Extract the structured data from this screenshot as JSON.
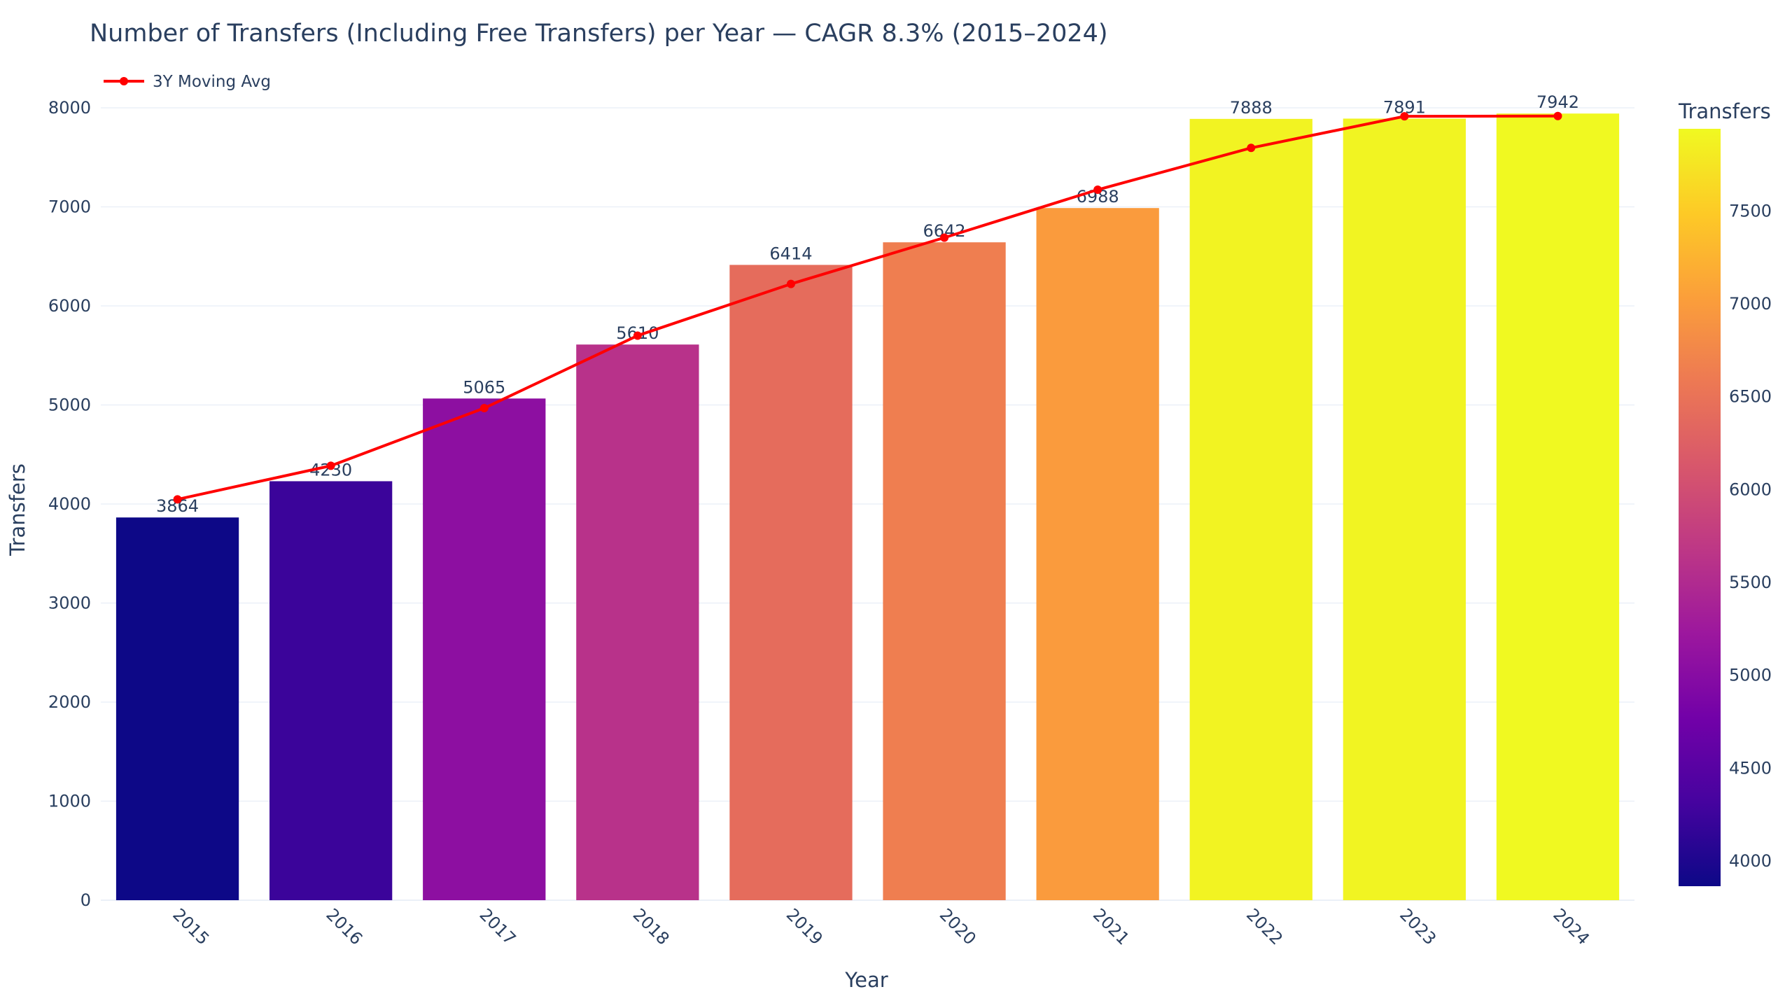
{
  "chart_data": {
    "type": "bar",
    "title": "Number of Transfers (Including Free Transfers) per Year — CAGR 8.3% (2015–2024)",
    "xlabel": "Year",
    "ylabel": "Transfers",
    "categories": [
      "2015",
      "2016",
      "2017",
      "2018",
      "2019",
      "2020",
      "2021",
      "2022",
      "2023",
      "2024"
    ],
    "series": [
      {
        "type": "bar",
        "values": [
          3864,
          4230,
          5065,
          5610,
          6414,
          6642,
          6988,
          7888,
          7891,
          7942
        ],
        "data_labels": [
          "3864",
          "4230",
          "5065",
          "5610",
          "6414",
          "6642",
          "6988",
          "7888",
          "7891",
          "7942"
        ],
        "colorscale": "Plasma"
      },
      {
        "name": "3Y Moving Avg",
        "type": "line",
        "color": "#ff0000",
        "values": [
          4047,
          4386,
          4968,
          5700,
          6222,
          6689,
          7173,
          7595,
          7914,
          7917
        ]
      }
    ],
    "ylim": [
      0,
      8000
    ],
    "yticks": [
      "0",
      "1000",
      "2000",
      "3000",
      "4000",
      "5000",
      "6000",
      "7000",
      "8000"
    ],
    "xtick_rotation_deg": 45,
    "grid": true,
    "legend": {
      "position": "top-left",
      "entries": [
        "3Y Moving Avg"
      ]
    },
    "colorbar": {
      "title": "Transfers",
      "range": [
        3864,
        7942
      ],
      "ticks": [
        "4000",
        "4500",
        "5000",
        "5500",
        "6000",
        "6500",
        "7000",
        "7500"
      ]
    }
  }
}
